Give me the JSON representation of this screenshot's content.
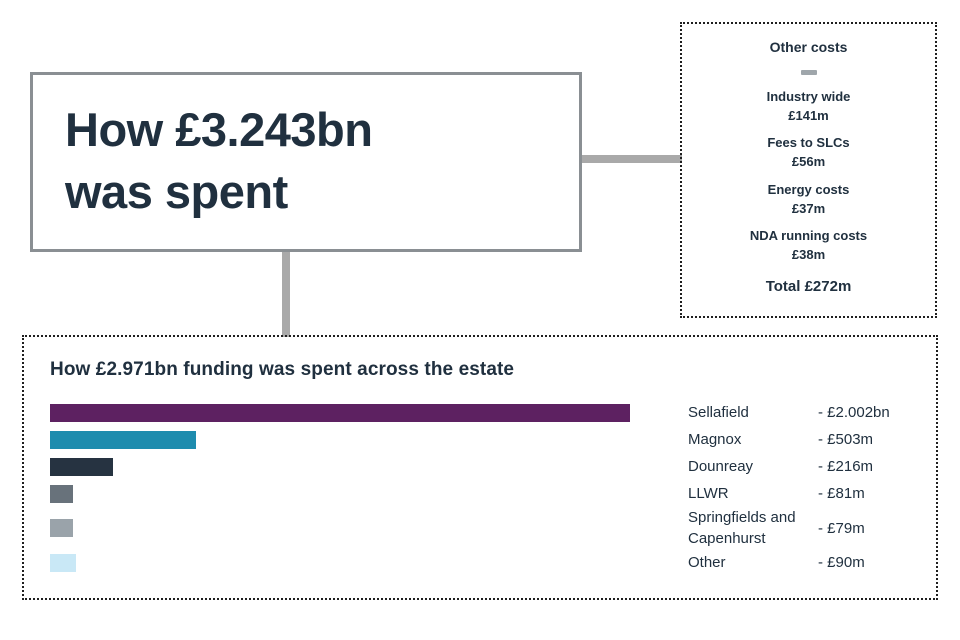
{
  "title_box": {
    "line1": "How £3.243bn",
    "line2": "was spent"
  },
  "other_costs": {
    "heading": "Other costs",
    "items": [
      {
        "label": "Industry wide",
        "value": "£141m"
      },
      {
        "label": "Fees to SLCs",
        "value": "£56m"
      },
      {
        "label": "Energy costs",
        "value": "£37m"
      },
      {
        "label": "NDA running costs",
        "value": "£38m"
      }
    ],
    "total": "Total £272m"
  },
  "chart_data": {
    "type": "bar",
    "orientation": "horizontal",
    "title": "How £2.971bn funding was spent across the estate",
    "categories": [
      "Sellafield",
      "Magnox",
      "Dounreay",
      "LLWR",
      "Springfields and Capenhurst",
      "Other"
    ],
    "values_millions": [
      2002,
      503,
      216,
      81,
      79,
      90
    ],
    "value_labels": [
      "- £2.002bn",
      "- £503m",
      "- £216m",
      "- £81m",
      "- £79m",
      "- £90m"
    ],
    "bar_colors": [
      "#5d2161",
      "#1e8cae",
      "#263341",
      "#68727b",
      "#9aa3aa",
      "#c9e8f6"
    ],
    "xlim": [
      0,
      2002
    ],
    "legend_position": "right",
    "grid": false
  },
  "colors": {
    "text": "#20303f",
    "connector": "#a9a9a9",
    "title_border": "#8a8f93",
    "dotted_border": "#1f1f1f"
  }
}
